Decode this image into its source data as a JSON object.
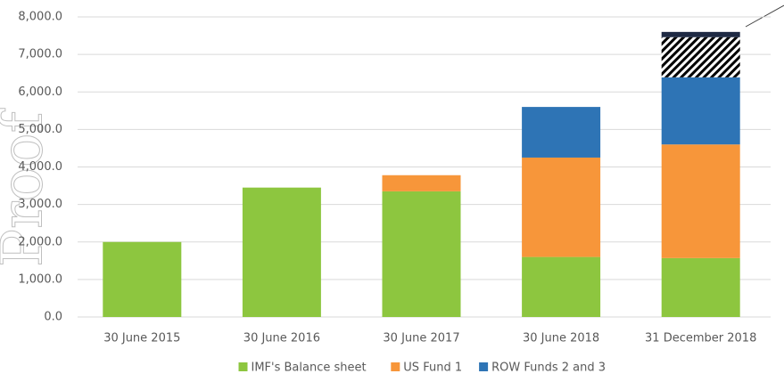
{
  "chart_data": {
    "type": "stacked_bar",
    "watermark": "Proof",
    "categories": [
      "30 June 2015",
      "30 June 2016",
      "30 June 2017",
      "30 June 2018",
      "31 December 2018"
    ],
    "series": [
      {
        "name": "IMF's Balance sheet",
        "color": "#8dc63f",
        "values": [
          2000,
          3450,
          3350,
          1600,
          1570
        ]
      },
      {
        "name": "US Fund 1",
        "color": "#f7963a",
        "values": [
          0,
          0,
          430,
          2650,
          3030
        ]
      },
      {
        "name": "ROW Funds 2 and 3",
        "color": "#2e74b5",
        "values": [
          0,
          0,
          0,
          1350,
          1790
        ]
      },
      {
        "color": "#000000",
        "pattern": "hatch",
        "values": [
          0,
          0,
          0,
          0,
          1070
        ]
      },
      {
        "color": "#1f2a44",
        "values": [
          0,
          0,
          0,
          0,
          140
        ]
      }
    ],
    "ylim": [
      0,
      8000
    ],
    "yticks": [
      {
        "value": 0,
        "label": "0.0"
      },
      {
        "value": 1000,
        "label": "1,000.0"
      },
      {
        "value": 2000,
        "label": "2,000.0"
      },
      {
        "value": 3000,
        "label": "3,000.0"
      },
      {
        "value": 4000,
        "label": "4,000.0"
      },
      {
        "value": 5000,
        "label": "5,000.0"
      },
      {
        "value": 6000,
        "label": "6,000.0"
      },
      {
        "value": 7000,
        "label": "7,000.0"
      },
      {
        "value": 8000,
        "label": "8,000.0"
      }
    ],
    "grid": true,
    "legend": "bottom"
  }
}
